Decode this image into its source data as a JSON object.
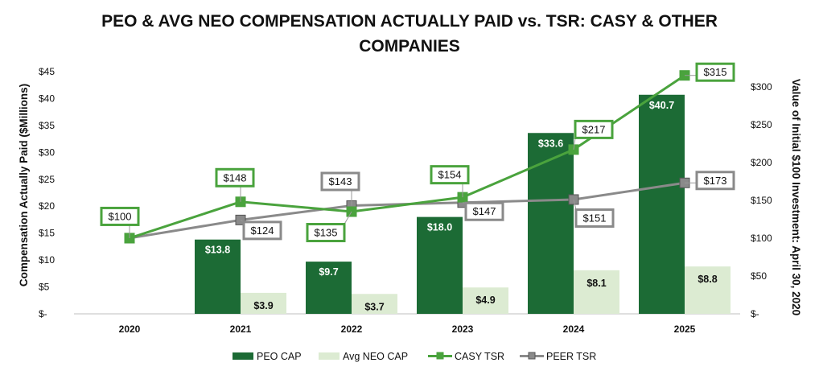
{
  "chart_data": {
    "type": "bar",
    "title_line1": "PEO & AVG NEO COMPENSATION ACTUALLY PAID vs. TSR: CASY & OTHER",
    "title_line2": "COMPANIES",
    "categories": [
      "2020",
      "2021",
      "2022",
      "2023",
      "2024",
      "2025"
    ],
    "ylabel_left": "Compensation Actually Paid ($Millions)",
    "ylabel_right": "Value of Initial $100 Investment: April 30, 2020",
    "ylim_left": [
      0,
      45
    ],
    "ylim_right": [
      0,
      320
    ],
    "left_ticks": [
      "$-",
      "$5",
      "$10",
      "$15",
      "$20",
      "$25",
      "$30",
      "$35",
      "$40",
      "$45"
    ],
    "right_ticks": [
      "$-",
      "$50",
      "$100",
      "$150",
      "$200",
      "$250",
      "$300"
    ],
    "bar_series": [
      {
        "name": "PEO CAP",
        "color": "#1c6b35",
        "label_color": "#ffffff",
        "values": [
          null,
          13.8,
          9.7,
          18.0,
          33.6,
          40.7
        ],
        "labels": [
          "",
          "$13.8",
          "$9.7",
          "$18.0",
          "$33.6",
          "$40.7"
        ]
      },
      {
        "name": "Avg NEO CAP",
        "color": "#dcebd2",
        "label_color": "#111111",
        "values": [
          null,
          3.9,
          3.7,
          4.9,
          8.1,
          8.8
        ],
        "labels": [
          "",
          "$3.9",
          "$3.7",
          "$4.9",
          "$8.1",
          "$8.8"
        ]
      }
    ],
    "line_series": [
      {
        "name": "CASY TSR",
        "color": "#4aa33d",
        "values": [
          100,
          148,
          135,
          154,
          217,
          315
        ],
        "labels": [
          "$100",
          "$148",
          "$135",
          "$154",
          "$217",
          "$315"
        ]
      },
      {
        "name": "PEER TSR",
        "color": "#8a8a8a",
        "values": [
          100,
          124,
          143,
          147,
          151,
          173
        ],
        "labels": [
          "$100",
          "$124",
          "$143",
          "$147",
          "$151",
          "$173"
        ]
      }
    ],
    "legend": [
      "PEO CAP",
      "Avg NEO CAP",
      "CASY TSR",
      "PEER TSR"
    ]
  }
}
